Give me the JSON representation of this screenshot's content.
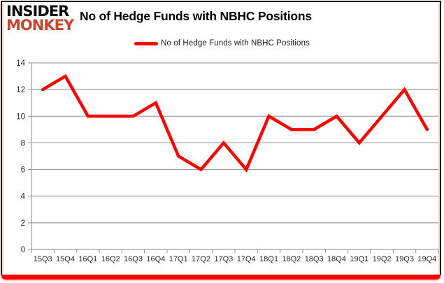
{
  "logo": {
    "line1": "INSIDER",
    "line2": "MONKEY"
  },
  "header": {
    "title": "No of Hedge Funds with NBHC Positions"
  },
  "legend": {
    "label": "No of Hedge Funds with NBHC Positions"
  },
  "colors": {
    "line": "#ff0000",
    "grid": "#8c8c8c",
    "axis": "#8c8c8c",
    "tick_text": "#262626",
    "title_text": "#000000",
    "logo_black": "#0d0d0d",
    "logo_red": "#c7472e",
    "frame_border": "#0d0d0d",
    "bottom_bar": "#ff0000",
    "background": "#ffffff"
  },
  "chart_data": {
    "type": "line",
    "title": "No of Hedge Funds with NBHC Positions",
    "categories": [
      "15Q3",
      "15Q4",
      "16Q1",
      "16Q2",
      "16Q3",
      "16Q4",
      "17Q1",
      "17Q2",
      "17Q3",
      "17Q4",
      "18Q1",
      "18Q2",
      "18Q3",
      "18Q4",
      "19Q1",
      "19Q2",
      "19Q3",
      "19Q4"
    ],
    "series": [
      {
        "name": "No of Hedge Funds with NBHC Positions",
        "values": [
          12,
          13,
          10,
          10,
          10,
          11,
          7,
          6,
          8,
          6,
          10,
          9,
          9,
          10,
          8,
          10,
          12,
          9
        ]
      }
    ],
    "xlabel": "",
    "ylabel": "",
    "ylim": [
      0,
      14
    ],
    "ytick_step": 2,
    "yticks": [
      0,
      2,
      4,
      6,
      8,
      10,
      12,
      14
    ],
    "grid": true,
    "legend_position": "top"
  }
}
